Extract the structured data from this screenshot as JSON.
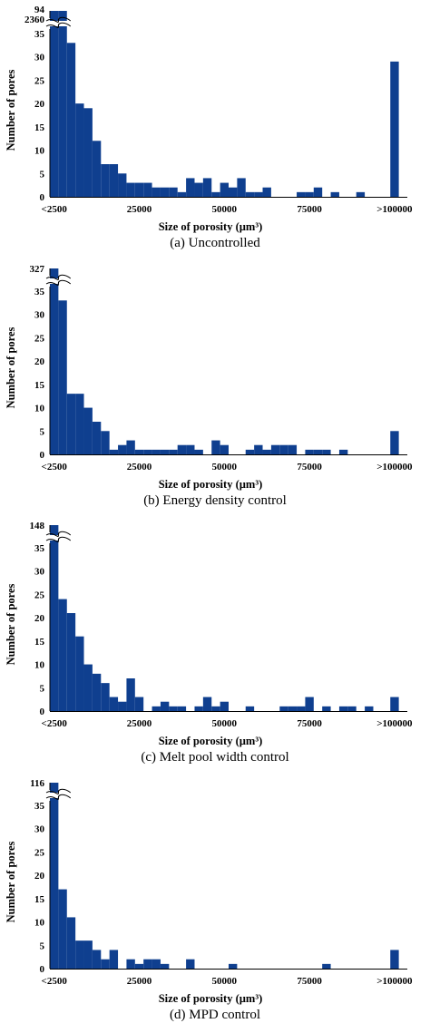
{
  "bar_color": "#0f3f8f",
  "chart_data": [
    {
      "type": "bar",
      "caption": "(a)  Uncontrolled",
      "xlabel": "Size of porosity (µm³)",
      "ylabel": "Number of pores",
      "x_ticks": [
        "<2500",
        "25000",
        "50000",
        "75000",
        ">100000"
      ],
      "y_ticks": [
        0,
        5,
        10,
        15,
        20,
        25,
        30,
        35
      ],
      "axis_break_labels": [
        "94",
        "2360"
      ],
      "ylim": [
        0,
        35
      ],
      "y_break": true,
      "x_min": 0,
      "x_max": 105000,
      "bin_width": 2500,
      "bins": [
        {
          "x": 0,
          "value": 2360
        },
        {
          "x": 2500,
          "value": 94
        },
        {
          "x": 5000,
          "value": 33
        },
        {
          "x": 7500,
          "value": 20
        },
        {
          "x": 10000,
          "value": 19
        },
        {
          "x": 12500,
          "value": 12
        },
        {
          "x": 15000,
          "value": 7
        },
        {
          "x": 17500,
          "value": 7
        },
        {
          "x": 20000,
          "value": 5
        },
        {
          "x": 22500,
          "value": 3
        },
        {
          "x": 25000,
          "value": 3
        },
        {
          "x": 27500,
          "value": 3
        },
        {
          "x": 30000,
          "value": 2
        },
        {
          "x": 32500,
          "value": 2
        },
        {
          "x": 35000,
          "value": 2
        },
        {
          "x": 37500,
          "value": 1
        },
        {
          "x": 40000,
          "value": 4
        },
        {
          "x": 42500,
          "value": 3
        },
        {
          "x": 45000,
          "value": 4
        },
        {
          "x": 47500,
          "value": 1
        },
        {
          "x": 50000,
          "value": 3
        },
        {
          "x": 52500,
          "value": 2
        },
        {
          "x": 55000,
          "value": 4
        },
        {
          "x": 57500,
          "value": 1
        },
        {
          "x": 60000,
          "value": 1
        },
        {
          "x": 62500,
          "value": 2
        },
        {
          "x": 72500,
          "value": 1
        },
        {
          "x": 75000,
          "value": 1
        },
        {
          "x": 77500,
          "value": 2
        },
        {
          "x": 82500,
          "value": 1
        },
        {
          "x": 90000,
          "value": 1
        },
        {
          "x": 100000,
          "value": 29
        }
      ]
    },
    {
      "type": "bar",
      "caption": "(b) Energy density control",
      "xlabel": "Size of porosity (µm³)",
      "ylabel": "Number of pores",
      "x_ticks": [
        "<2500",
        "25000",
        "50000",
        "75000",
        ">100000"
      ],
      "y_ticks": [
        0,
        5,
        10,
        15,
        20,
        25,
        30,
        35
      ],
      "axis_break_labels": [
        "327"
      ],
      "ylim": [
        0,
        35
      ],
      "y_break": true,
      "x_min": 0,
      "x_max": 105000,
      "bin_width": 2500,
      "bins": [
        {
          "x": 0,
          "value": 327
        },
        {
          "x": 2500,
          "value": 33
        },
        {
          "x": 5000,
          "value": 13
        },
        {
          "x": 7500,
          "value": 13
        },
        {
          "x": 10000,
          "value": 10
        },
        {
          "x": 12500,
          "value": 7
        },
        {
          "x": 15000,
          "value": 5
        },
        {
          "x": 17500,
          "value": 1
        },
        {
          "x": 20000,
          "value": 2
        },
        {
          "x": 22500,
          "value": 3
        },
        {
          "x": 25000,
          "value": 1
        },
        {
          "x": 27500,
          "value": 1
        },
        {
          "x": 30000,
          "value": 1
        },
        {
          "x": 32500,
          "value": 1
        },
        {
          "x": 35000,
          "value": 1
        },
        {
          "x": 37500,
          "value": 2
        },
        {
          "x": 40000,
          "value": 2
        },
        {
          "x": 42500,
          "value": 1
        },
        {
          "x": 47500,
          "value": 3
        },
        {
          "x": 50000,
          "value": 2
        },
        {
          "x": 57500,
          "value": 1
        },
        {
          "x": 60000,
          "value": 2
        },
        {
          "x": 62500,
          "value": 1
        },
        {
          "x": 65000,
          "value": 2
        },
        {
          "x": 67500,
          "value": 2
        },
        {
          "x": 70000,
          "value": 2
        },
        {
          "x": 75000,
          "value": 1
        },
        {
          "x": 77500,
          "value": 1
        },
        {
          "x": 80000,
          "value": 1
        },
        {
          "x": 85000,
          "value": 1
        },
        {
          "x": 100000,
          "value": 5
        }
      ]
    },
    {
      "type": "bar",
      "caption": "(c)  Melt pool width control",
      "xlabel": "Size of porosity (µm³)",
      "ylabel": "Number of pores",
      "x_ticks": [
        "<2500",
        "25000",
        "50000",
        "75000",
        ">100000"
      ],
      "y_ticks": [
        0,
        5,
        10,
        15,
        20,
        25,
        30,
        35
      ],
      "axis_break_labels": [
        "148"
      ],
      "ylim": [
        0,
        35
      ],
      "y_break": true,
      "x_min": 0,
      "x_max": 105000,
      "bin_width": 2500,
      "bins": [
        {
          "x": 0,
          "value": 148
        },
        {
          "x": 2500,
          "value": 24
        },
        {
          "x": 5000,
          "value": 21
        },
        {
          "x": 7500,
          "value": 16
        },
        {
          "x": 10000,
          "value": 10
        },
        {
          "x": 12500,
          "value": 8
        },
        {
          "x": 15000,
          "value": 6
        },
        {
          "x": 17500,
          "value": 3
        },
        {
          "x": 20000,
          "value": 2
        },
        {
          "x": 22500,
          "value": 7
        },
        {
          "x": 25000,
          "value": 3
        },
        {
          "x": 30000,
          "value": 1
        },
        {
          "x": 32500,
          "value": 2
        },
        {
          "x": 35000,
          "value": 1
        },
        {
          "x": 37500,
          "value": 1
        },
        {
          "x": 42500,
          "value": 1
        },
        {
          "x": 45000,
          "value": 3
        },
        {
          "x": 47500,
          "value": 1
        },
        {
          "x": 50000,
          "value": 2
        },
        {
          "x": 57500,
          "value": 1
        },
        {
          "x": 67500,
          "value": 1
        },
        {
          "x": 70000,
          "value": 1
        },
        {
          "x": 72500,
          "value": 1
        },
        {
          "x": 75000,
          "value": 3
        },
        {
          "x": 80000,
          "value": 1
        },
        {
          "x": 85000,
          "value": 1
        },
        {
          "x": 87500,
          "value": 1
        },
        {
          "x": 92500,
          "value": 1
        },
        {
          "x": 100000,
          "value": 3
        }
      ]
    },
    {
      "type": "bar",
      "caption": "(d) MPD control",
      "xlabel": "Size of porosity (µm³)",
      "ylabel": "Number of pores",
      "x_ticks": [
        "<2500",
        "25000",
        "50000",
        "75000",
        ">100000"
      ],
      "y_ticks": [
        0,
        5,
        10,
        15,
        20,
        25,
        30,
        35
      ],
      "axis_break_labels": [
        "116"
      ],
      "ylim": [
        0,
        35
      ],
      "y_break": true,
      "x_min": 0,
      "x_max": 105000,
      "bin_width": 2500,
      "bins": [
        {
          "x": 0,
          "value": 116
        },
        {
          "x": 2500,
          "value": 17
        },
        {
          "x": 5000,
          "value": 11
        },
        {
          "x": 7500,
          "value": 6
        },
        {
          "x": 10000,
          "value": 6
        },
        {
          "x": 12500,
          "value": 4
        },
        {
          "x": 15000,
          "value": 2
        },
        {
          "x": 17500,
          "value": 4
        },
        {
          "x": 22500,
          "value": 2
        },
        {
          "x": 25000,
          "value": 1
        },
        {
          "x": 27500,
          "value": 2
        },
        {
          "x": 30000,
          "value": 2
        },
        {
          "x": 32500,
          "value": 1
        },
        {
          "x": 40000,
          "value": 2
        },
        {
          "x": 52500,
          "value": 1
        },
        {
          "x": 80000,
          "value": 1
        },
        {
          "x": 100000,
          "value": 4
        }
      ]
    }
  ]
}
